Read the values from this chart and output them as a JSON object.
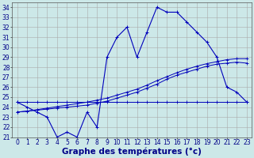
{
  "background_color": "#cce8e8",
  "grid_color": "#aaaaaa",
  "line_color": "#0000bb",
  "xlabel": "Graphe des températures (°c)",
  "xlabel_fontsize": 7.5,
  "tick_fontsize": 5.5,
  "ylim": [
    21,
    34.5
  ],
  "xlim": [
    -0.5,
    23.5
  ],
  "yticks": [
    21,
    22,
    23,
    24,
    25,
    26,
    27,
    28,
    29,
    30,
    31,
    32,
    33,
    34
  ],
  "xticks": [
    0,
    1,
    2,
    3,
    4,
    5,
    6,
    7,
    8,
    9,
    10,
    11,
    12,
    13,
    14,
    15,
    16,
    17,
    18,
    19,
    20,
    21,
    22,
    23
  ],
  "hours": [
    0,
    1,
    2,
    3,
    4,
    5,
    6,
    7,
    8,
    9,
    10,
    11,
    12,
    13,
    14,
    15,
    16,
    17,
    18,
    19,
    20,
    21,
    22,
    23
  ],
  "temp_line": [
    24.5,
    24.0,
    23.5,
    23.0,
    21.0,
    21.5,
    21.0,
    23.5,
    22.0,
    29.0,
    31.0,
    32.0,
    29.0,
    31.5,
    34.0,
    33.5,
    33.5,
    32.5,
    31.5,
    30.5,
    29.0,
    26.0,
    25.5,
    24.5
  ],
  "line_a": [
    24.5,
    24.5,
    24.5,
    24.5,
    24.5,
    24.5,
    24.5,
    24.5,
    24.5,
    24.5,
    24.5,
    24.5,
    24.5,
    24.5,
    24.5,
    24.5,
    24.5,
    24.5,
    24.5,
    24.5,
    24.5,
    24.5,
    24.5,
    24.5
  ],
  "line_b": [
    23.5,
    23.6,
    23.7,
    23.8,
    23.9,
    24.0,
    24.1,
    24.2,
    24.4,
    24.6,
    24.9,
    25.2,
    25.5,
    25.9,
    26.3,
    26.8,
    27.2,
    27.5,
    27.8,
    28.1,
    28.3,
    28.4,
    28.5,
    28.4
  ],
  "line_c": [
    23.5,
    23.6,
    23.75,
    23.9,
    24.05,
    24.2,
    24.35,
    24.5,
    24.7,
    24.9,
    25.2,
    25.5,
    25.8,
    26.2,
    26.65,
    27.05,
    27.45,
    27.8,
    28.1,
    28.35,
    28.55,
    28.75,
    28.85,
    28.85
  ]
}
